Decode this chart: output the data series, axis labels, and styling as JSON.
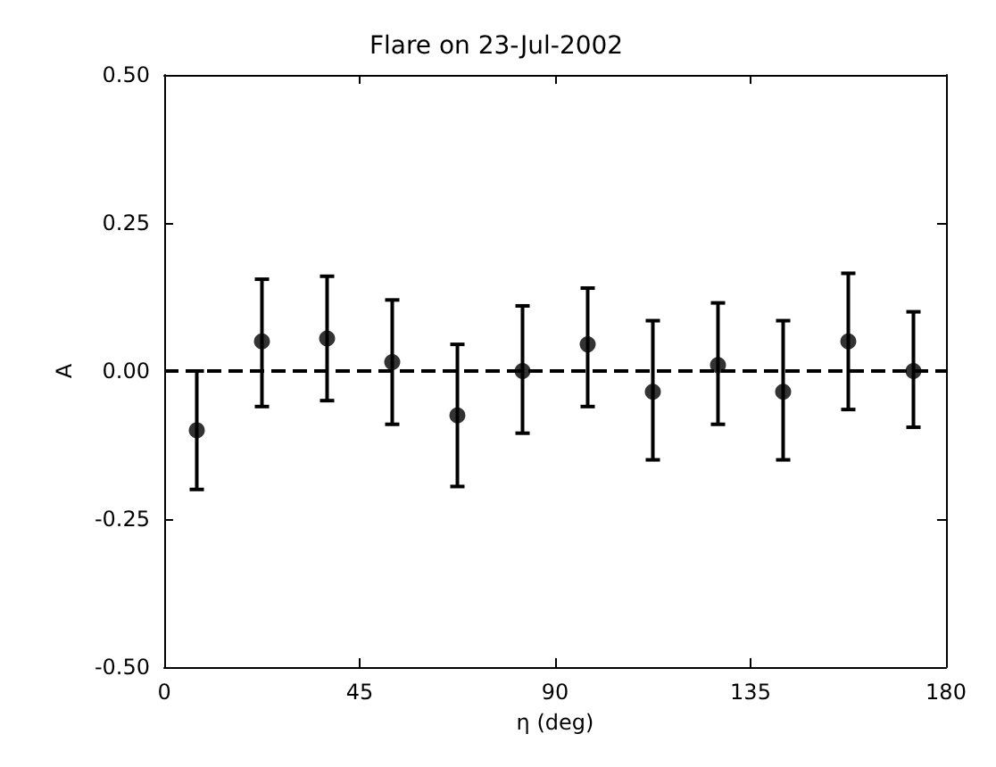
{
  "chart_data": {
    "type": "scatter",
    "title": "Flare on 23-Jul-2002",
    "xlabel": "η (deg)",
    "ylabel": "A",
    "x": [
      7.5,
      22.5,
      37.5,
      52.5,
      67.5,
      82.5,
      97.5,
      112.5,
      127.5,
      142.5,
      157.5,
      172.5
    ],
    "values": [
      -0.1,
      0.05,
      0.055,
      0.015,
      -0.075,
      0.0,
      0.045,
      -0.035,
      0.01,
      -0.035,
      0.05,
      0.0
    ],
    "errors": [
      [
        -0.2,
        0.0
      ],
      [
        -0.06,
        0.155
      ],
      [
        -0.05,
        0.16
      ],
      [
        -0.09,
        0.12
      ],
      [
        -0.195,
        0.045
      ],
      [
        -0.105,
        0.11
      ],
      [
        -0.06,
        0.14
      ],
      [
        -0.15,
        0.085
      ],
      [
        -0.09,
        0.115
      ],
      [
        -0.15,
        0.085
      ],
      [
        -0.065,
        0.165
      ],
      [
        -0.095,
        0.1
      ]
    ],
    "color": "#000000",
    "marker": "circle",
    "xlim": [
      0,
      180
    ],
    "xticks": [
      0,
      45,
      90,
      135,
      180
    ],
    "ylim": [
      -0.5,
      0.5
    ],
    "yticks": [
      {
        "value": -0.5,
        "label": "-0.50"
      },
      -0.25,
      {
        "value": 0,
        "label": "0.00"
      },
      0.25,
      {
        "value": 0.5,
        "label": "0.50"
      }
    ],
    "ref_lines": [
      {
        "axis": "y",
        "value": 0,
        "line_style": "dashed"
      }
    ]
  }
}
